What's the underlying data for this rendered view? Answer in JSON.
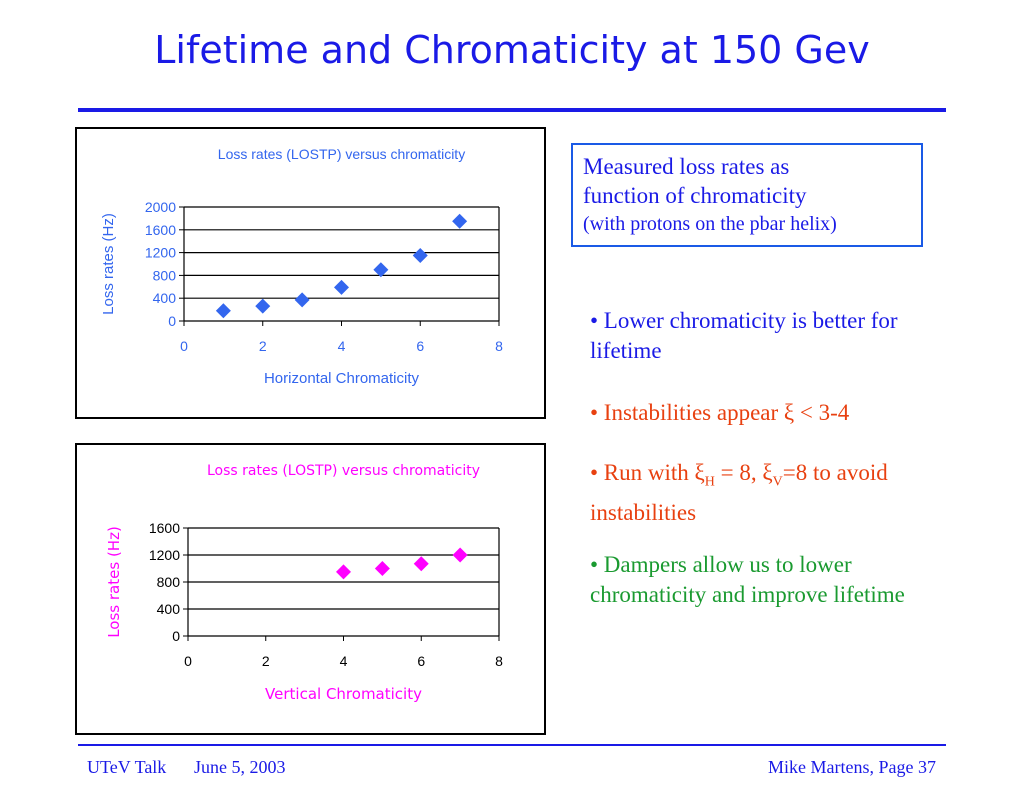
{
  "slide": {
    "title": "Lifetime and Chromaticity at 150 Gev",
    "callout": {
      "line1": "Measured loss rates as",
      "line2": "function of chromaticity",
      "line3": "(with protons on the pbar helix)"
    },
    "bullets": {
      "b1": "• Lower chromaticity is better for lifetime",
      "b2": "• Instabilities appear ξ < 3-4",
      "b3": {
        "pre": "• Run with ξ",
        "sub1": "H",
        "mid": " = 8, ξ",
        "sub2": "V",
        "post": "=8 to avoid instabilities"
      },
      "b4": "• Dampers allow us to lower chromaticity and improve lifetime"
    },
    "footer": {
      "left": "UTeV Talk",
      "date": "June 5, 2003",
      "right": "Mike Martens, Page 37"
    },
    "colors": {
      "title": "#1a1ae6",
      "bullet_blue": "#1a1ae6",
      "bullet_red": "#e84010",
      "bullet_green": "#1a9a30",
      "series_blue": "#3366ee",
      "series_magenta": "#ff00ff"
    }
  },
  "chart_data": [
    {
      "type": "scatter",
      "title": "Loss rates (LOSTP) versus chromaticity",
      "xlabel": "Horizontal Chromaticity",
      "ylabel": "Loss rates (Hz)",
      "xlim": [
        0,
        8
      ],
      "ylim": [
        0,
        2000
      ],
      "xticks": [
        "0",
        "2",
        "4",
        "6",
        "8"
      ],
      "yticks": [
        "0",
        "400",
        "800",
        "1200",
        "1600",
        "2000"
      ],
      "grid": "horizontal",
      "marker": "diamond",
      "color": "#3366ee",
      "series": [
        {
          "x": [
            1,
            2,
            3,
            4,
            5,
            6,
            7
          ],
          "y": [
            180,
            260,
            370,
            590,
            900,
            1150,
            1750
          ]
        }
      ]
    },
    {
      "type": "scatter",
      "title": "Loss rates (LOSTP) versus chromaticity",
      "xlabel": "Vertical Chromaticity",
      "ylabel": "Loss rates (Hz)",
      "xlim": [
        0,
        8
      ],
      "ylim": [
        0,
        1600
      ],
      "xticks": [
        "0",
        "2",
        "4",
        "6",
        "8"
      ],
      "yticks": [
        "0",
        "400",
        "800",
        "1200",
        "1600"
      ],
      "grid": "horizontal",
      "marker": "diamond",
      "color": "#ff00ff",
      "series": [
        {
          "x": [
            4,
            5,
            6,
            7
          ],
          "y": [
            950,
            1000,
            1070,
            1200
          ]
        }
      ]
    }
  ]
}
